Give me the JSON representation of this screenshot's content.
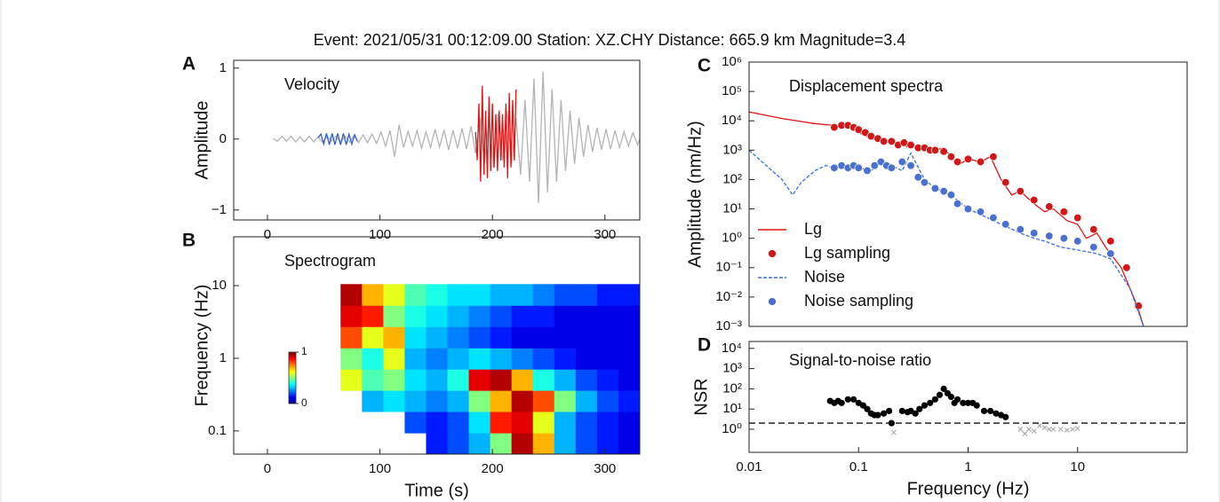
{
  "title": "Event: 2021/05/31 00:12:09.00 Station: XZ.CHY Distance: 665.9 km Magnitude=3.4",
  "chart_data": [
    {
      "type": "line",
      "panel": "A",
      "annotation": "Velocity",
      "ylabel": "Amplitude",
      "xlim": [
        -30,
        331
      ],
      "ylim": [
        -1.14,
        1.11
      ],
      "xticks": [
        0,
        100,
        200,
        300
      ],
      "yticks": [
        {
          "value": -1,
          "label": "−1"
        },
        0,
        1
      ],
      "series": [
        {
          "color": "#b4b4b4",
          "style": "line",
          "x": [
            5,
            9,
            13,
            17,
            21,
            25,
            29,
            33,
            37,
            41,
            45,
            49,
            53,
            57,
            61,
            65,
            69,
            73,
            77,
            81,
            85,
            89,
            93,
            97,
            101,
            105,
            109,
            113,
            117,
            121,
            125,
            129,
            133,
            137,
            141,
            145,
            149,
            153,
            157,
            161,
            165,
            169,
            173,
            177,
            181,
            185,
            189,
            193,
            197,
            201,
            205,
            209,
            213,
            217,
            221,
            225,
            229,
            233,
            237,
            241,
            245,
            249,
            253,
            257,
            261,
            265,
            269,
            273,
            277,
            281,
            285,
            289,
            293,
            297,
            301,
            305,
            309,
            313,
            317,
            321,
            325,
            329,
            333
          ],
          "values": [
            0.01,
            -0.03,
            0.04,
            -0.03,
            0.04,
            -0.04,
            0.03,
            -0.04,
            0.04,
            -0.04,
            0.03,
            -0.04,
            0.04,
            -0.03,
            0.04,
            -0.05,
            0.04,
            -0.04,
            0.05,
            -0.05,
            0.06,
            -0.05,
            0.07,
            -0.06,
            0.1,
            -0.1,
            0.12,
            -0.25,
            0.2,
            -0.12,
            0.11,
            -0.1,
            0.12,
            -0.13,
            0.1,
            -0.12,
            0.14,
            -0.11,
            0.13,
            -0.15,
            0.12,
            -0.13,
            0.15,
            -0.14,
            0.18,
            -0.2,
            0.3,
            -0.35,
            0.3,
            -0.4,
            0.35,
            -0.3,
            0.4,
            -0.35,
            0.3,
            -0.5,
            0.55,
            -0.6,
            0.85,
            -0.9,
            0.95,
            -0.75,
            0.7,
            -0.6,
            0.55,
            -0.45,
            0.4,
            -0.35,
            0.3,
            -0.25,
            0.2,
            -0.18,
            0.16,
            -0.15,
            0.14,
            -0.14,
            0.12,
            -0.12,
            0.1,
            -0.1,
            0.09,
            -0.08,
            0.08
          ]
        },
        {
          "color": "#2f5fd0",
          "style": "line",
          "x": [
            45,
            47.5,
            50,
            52.5,
            55,
            57.5,
            60,
            62.5,
            65,
            67.5,
            70,
            72.5,
            75,
            77.5,
            80
          ],
          "values": [
            0.02,
            0.07,
            -0.07,
            0.08,
            -0.08,
            0.08,
            -0.08,
            0.08,
            -0.08,
            0.08,
            -0.08,
            0.07,
            -0.07,
            0.06,
            -0.03
          ]
        },
        {
          "color": "#e01414",
          "style": "line",
          "x": [
            185,
            186.5,
            188,
            189.5,
            191,
            192.5,
            194,
            195.5,
            197,
            198.5,
            200,
            201.5,
            203,
            204.5,
            206,
            207.5,
            209,
            210.5,
            212,
            213.5,
            215,
            216.5,
            218,
            219.5,
            221
          ],
          "values": [
            0.1,
            -0.3,
            0.5,
            -0.6,
            0.75,
            -0.5,
            0.4,
            -0.55,
            0.6,
            -0.45,
            0.5,
            -0.4,
            0.35,
            -0.45,
            0.4,
            -0.3,
            0.35,
            -0.4,
            0.5,
            -0.55,
            0.65,
            -0.4,
            0.55,
            -0.3,
            0.7
          ]
        }
      ]
    },
    {
      "type": "heatmap",
      "panel": "B",
      "annotation": "Spectrogram",
      "xlabel": "Time (s)",
      "ylabel": "Frequency (Hz)",
      "yscale": "log",
      "xlim": [
        -30,
        331
      ],
      "ylim": [
        0.048,
        47
      ],
      "xticks": [
        0,
        100,
        200,
        300
      ],
      "yticks": [
        0.1,
        1,
        10
      ],
      "xbins": [
        65,
        84,
        103,
        122,
        141,
        160,
        179,
        198,
        217,
        236,
        255,
        274,
        293,
        312,
        331
      ],
      "ybins": [
        0.048,
        0.094,
        0.185,
        0.362,
        0.71,
        1.39,
        2.73,
        5.36,
        10.5
      ],
      "values": [
        [
          null,
          null,
          null,
          null,
          0.15,
          0.2,
          0.3,
          0.5,
          0.95,
          0.7,
          0.3,
          0.2,
          0.15,
          0.1
        ],
        [
          null,
          null,
          null,
          0.2,
          0.15,
          0.2,
          0.35,
          0.85,
          0.9,
          0.6,
          0.3,
          0.2,
          0.15,
          0.1
        ],
        [
          null,
          0.3,
          0.35,
          0.3,
          0.25,
          0.3,
          0.5,
          0.7,
          0.95,
          0.8,
          0.5,
          0.3,
          0.2,
          0.15
        ],
        [
          0.6,
          0.45,
          0.5,
          0.35,
          0.3,
          0.4,
          0.9,
          0.95,
          0.7,
          0.4,
          0.3,
          0.2,
          0.15,
          0.1
        ],
        [
          0.5,
          0.4,
          0.6,
          0.3,
          0.25,
          0.3,
          0.35,
          0.3,
          0.25,
          0.2,
          0.15,
          0.1,
          0.1,
          0.1
        ],
        [
          0.8,
          0.6,
          0.7,
          0.35,
          0.3,
          0.25,
          0.2,
          0.15,
          0.1,
          0.1,
          0.1,
          0.1,
          0.1,
          0.1
        ],
        [
          0.9,
          0.85,
          0.5,
          0.4,
          0.35,
          0.3,
          0.25,
          0.2,
          0.15,
          0.15,
          0.1,
          0.1,
          0.1,
          0.1
        ],
        [
          0.95,
          0.7,
          0.6,
          0.45,
          0.4,
          0.35,
          0.35,
          0.3,
          0.3,
          0.25,
          0.2,
          0.2,
          0.15,
          0.15
        ]
      ],
      "clim": [
        0,
        1
      ],
      "colorbar_ticks": [
        0,
        1
      ]
    },
    {
      "type": "line",
      "panel": "C",
      "annotation": "Displacement spectra",
      "ylabel": "Amplitude (nm/Hz)",
      "xscale": "log",
      "yscale": "log",
      "xlim": [
        0.01,
        100
      ],
      "ylim": [
        0.001,
        1000000
      ],
      "yticks": [
        {
          "value": 0.001,
          "label": "10⁻³"
        },
        {
          "value": 0.01,
          "label": "10⁻²"
        },
        {
          "value": 0.1,
          "label": "10⁻¹"
        },
        {
          "value": 1,
          "label": "10⁰"
        },
        {
          "value": 10,
          "label": "10¹"
        },
        {
          "value": 100,
          "label": "10²"
        },
        {
          "value": 1000,
          "label": "10³"
        },
        {
          "value": 10000,
          "label": "10⁴"
        },
        {
          "value": 100000,
          "label": "10⁵"
        },
        {
          "value": 1000000,
          "label": "10⁶"
        }
      ],
      "legend": "lower left",
      "series": [
        {
          "name": "Lg",
          "color": "#e01414",
          "style": "line",
          "x": [
            0.01,
            0.02,
            0.04,
            0.06,
            0.08,
            0.1,
            0.13,
            0.16,
            0.2,
            0.25,
            0.3,
            0.4,
            0.5,
            0.6,
            0.7,
            0.8,
            1,
            1.3,
            1.6,
            2,
            2.5,
            3,
            4,
            5,
            6,
            8,
            10,
            12,
            15,
            18,
            20,
            25,
            30,
            35,
            40
          ],
          "values": [
            20000,
            12000,
            8000,
            7000,
            6000,
            4000,
            2500,
            2000,
            2000,
            1500,
            1200,
            1500,
            1000,
            1200,
            600,
            300,
            500,
            400,
            600,
            100,
            30,
            40,
            15,
            8,
            10,
            4,
            3,
            1,
            1.5,
            0.5,
            0.3,
            0.1,
            0.02,
            0.005,
            0.001
          ]
        },
        {
          "name": "Lg sampling",
          "color": "#d01818",
          "style": "markers",
          "x": [
            0.06,
            0.07,
            0.08,
            0.09,
            0.1,
            0.115,
            0.13,
            0.15,
            0.17,
            0.2,
            0.23,
            0.26,
            0.3,
            0.35,
            0.4,
            0.45,
            0.5,
            0.6,
            0.7,
            0.8,
            1,
            1.3,
            1.7,
            2.2,
            3,
            4,
            5.5,
            7.5,
            10,
            14,
            20,
            28,
            36
          ],
          "values": [
            6000,
            7000,
            7000,
            6000,
            5000,
            4000,
            3000,
            2500,
            2000,
            2000,
            1500,
            1800,
            1500,
            1200,
            1200,
            1000,
            1000,
            900,
            600,
            400,
            500,
            400,
            600,
            80,
            40,
            20,
            12,
            8,
            5,
            2,
            0.8,
            0.1,
            0.005
          ]
        },
        {
          "name": "Noise",
          "color": "#3a6ee0",
          "style": "dashed",
          "x": [
            0.01,
            0.02,
            0.025,
            0.03,
            0.04,
            0.05,
            0.06,
            0.08,
            0.1,
            0.13,
            0.16,
            0.2,
            0.25,
            0.3,
            0.4,
            0.5,
            0.6,
            0.8,
            1,
            1.5,
            2,
            3,
            4,
            5,
            7,
            10,
            15,
            20,
            30,
            40
          ],
          "values": [
            1000,
            100,
            30,
            80,
            200,
            300,
            250,
            300,
            250,
            200,
            400,
            300,
            200,
            800,
            100,
            50,
            40,
            20,
            10,
            5,
            3,
            1.5,
            1,
            0.8,
            0.5,
            0.4,
            0.3,
            0.2,
            0.02,
            0.001
          ]
        },
        {
          "name": "Noise sampling",
          "color": "#4a70d0",
          "style": "markers",
          "x": [
            0.06,
            0.07,
            0.08,
            0.09,
            0.1,
            0.12,
            0.14,
            0.16,
            0.18,
            0.2,
            0.25,
            0.3,
            0.35,
            0.4,
            0.5,
            0.6,
            0.7,
            0.8,
            1,
            1.3,
            1.7,
            2.2,
            3,
            4,
            5.5,
            7.5,
            10,
            14,
            20
          ],
          "values": [
            250,
            300,
            250,
            300,
            250,
            200,
            300,
            400,
            300,
            250,
            400,
            300,
            120,
            80,
            50,
            40,
            30,
            15,
            10,
            8,
            5,
            3,
            2,
            1.5,
            1.2,
            1,
            0.8,
            0.5,
            0.3
          ]
        }
      ]
    },
    {
      "type": "scatter",
      "panel": "D",
      "annotation": "Signal-to-noise ratio",
      "xlabel": "Frequency (Hz)",
      "ylabel": "NSR",
      "xscale": "log",
      "yscale": "log",
      "xlim": [
        0.01,
        100
      ],
      "ylim": [
        0.072,
        22000
      ],
      "xticks": [
        0.01,
        0.1,
        1,
        10
      ],
      "yticks": [
        {
          "value": 1,
          "label": "10⁰"
        },
        {
          "value": 10,
          "label": "10¹"
        },
        {
          "value": 100,
          "label": "10²"
        },
        {
          "value": 1000,
          "label": "10³"
        },
        {
          "value": 10000,
          "label": "10⁴"
        }
      ],
      "hline": 2,
      "series": [
        {
          "color": "#000000",
          "style": "markers",
          "x": [
            0.055,
            0.06,
            0.065,
            0.07,
            0.08,
            0.09,
            0.1,
            0.11,
            0.12,
            0.13,
            0.14,
            0.15,
            0.17,
            0.19,
            0.2,
            0.25,
            0.28,
            0.3,
            0.33,
            0.36,
            0.4,
            0.45,
            0.5,
            0.55,
            0.6,
            0.65,
            0.7,
            0.75,
            0.8,
            0.9,
            1,
            1.1,
            1.2,
            1.4,
            1.6,
            1.8,
            2,
            2.2
          ],
          "values": [
            25,
            20,
            25,
            20,
            30,
            30,
            20,
            15,
            10,
            6,
            5,
            5,
            6,
            8,
            2,
            8,
            7,
            8,
            6,
            10,
            15,
            20,
            30,
            50,
            100,
            60,
            40,
            20,
            30,
            20,
            20,
            20,
            15,
            8,
            8,
            6,
            5,
            4
          ]
        },
        {
          "color": "#a8a8a8",
          "style": "crosses",
          "x": [
            0.21,
            3,
            3.3,
            3.6,
            4,
            4.5,
            5,
            5.5,
            6,
            7,
            8,
            9,
            10
          ],
          "values": [
            0.7,
            1,
            0.6,
            1,
            0.8,
            1.5,
            1.2,
            1,
            1,
            1,
            0.9,
            1,
            1.1
          ]
        }
      ]
    }
  ]
}
